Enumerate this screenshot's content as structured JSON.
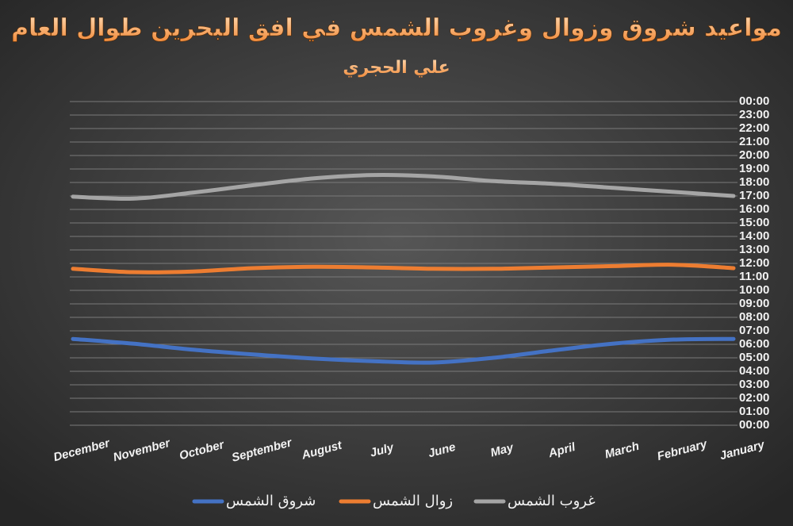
{
  "chart_data": {
    "type": "line",
    "title": "مواعيد شروق وزوال وغروب الشمس في افق البحرين طوال العام",
    "subtitle": "علي الحجري",
    "categories": [
      "December",
      "November",
      "October",
      "September",
      "August",
      "July",
      "June",
      "May",
      "April",
      "March",
      "February",
      "January"
    ],
    "series": [
      {
        "name": "شروق الشمس",
        "color": "#4472c4",
        "values": [
          6.4,
          6.05,
          5.6,
          5.25,
          4.95,
          4.75,
          4.65,
          5.0,
          5.55,
          6.05,
          6.35,
          6.4
        ]
      },
      {
        "name": "زوال الشمس",
        "color": "#ed7d31",
        "values": [
          11.6,
          11.35,
          11.4,
          11.65,
          11.75,
          11.7,
          11.6,
          11.6,
          11.7,
          11.8,
          11.9,
          11.65
        ]
      },
      {
        "name": "غروب الشمس",
        "color": "#a5a5a5",
        "values": [
          16.95,
          16.8,
          17.25,
          17.8,
          18.3,
          18.55,
          18.45,
          18.1,
          17.9,
          17.6,
          17.3,
          17.0
        ]
      }
    ],
    "ylim": [
      0,
      24
    ],
    "yticks": [
      {
        "value": 0,
        "label": "00:00"
      },
      {
        "value": 1,
        "label": "01:00"
      },
      {
        "value": 2,
        "label": "02:00"
      },
      {
        "value": 3,
        "label": "03:00"
      },
      {
        "value": 4,
        "label": "04:00"
      },
      {
        "value": 5,
        "label": "05:00"
      },
      {
        "value": 6,
        "label": "06:00"
      },
      {
        "value": 7,
        "label": "07:00"
      },
      {
        "value": 8,
        "label": "08:00"
      },
      {
        "value": 9,
        "label": "09:00"
      },
      {
        "value": 10,
        "label": "10:00"
      },
      {
        "value": 11,
        "label": "11:00"
      },
      {
        "value": 12,
        "label": "12:00"
      },
      {
        "value": 13,
        "label": "13:00"
      },
      {
        "value": 14,
        "label": "14:00"
      },
      {
        "value": 15,
        "label": "15:00"
      },
      {
        "value": 16,
        "label": "16:00"
      },
      {
        "value": 17,
        "label": "17:00"
      },
      {
        "value": 18,
        "label": "18:00"
      },
      {
        "value": 19,
        "label": "19:00"
      },
      {
        "value": 20,
        "label": "20:00"
      },
      {
        "value": 21,
        "label": "21:00"
      },
      {
        "value": 22,
        "label": "22:00"
      },
      {
        "value": 23,
        "label": "23:00"
      },
      {
        "value": 24,
        "label": "00:00"
      }
    ],
    "y_axis_position": "right",
    "grid": true,
    "legend": "bottom"
  }
}
